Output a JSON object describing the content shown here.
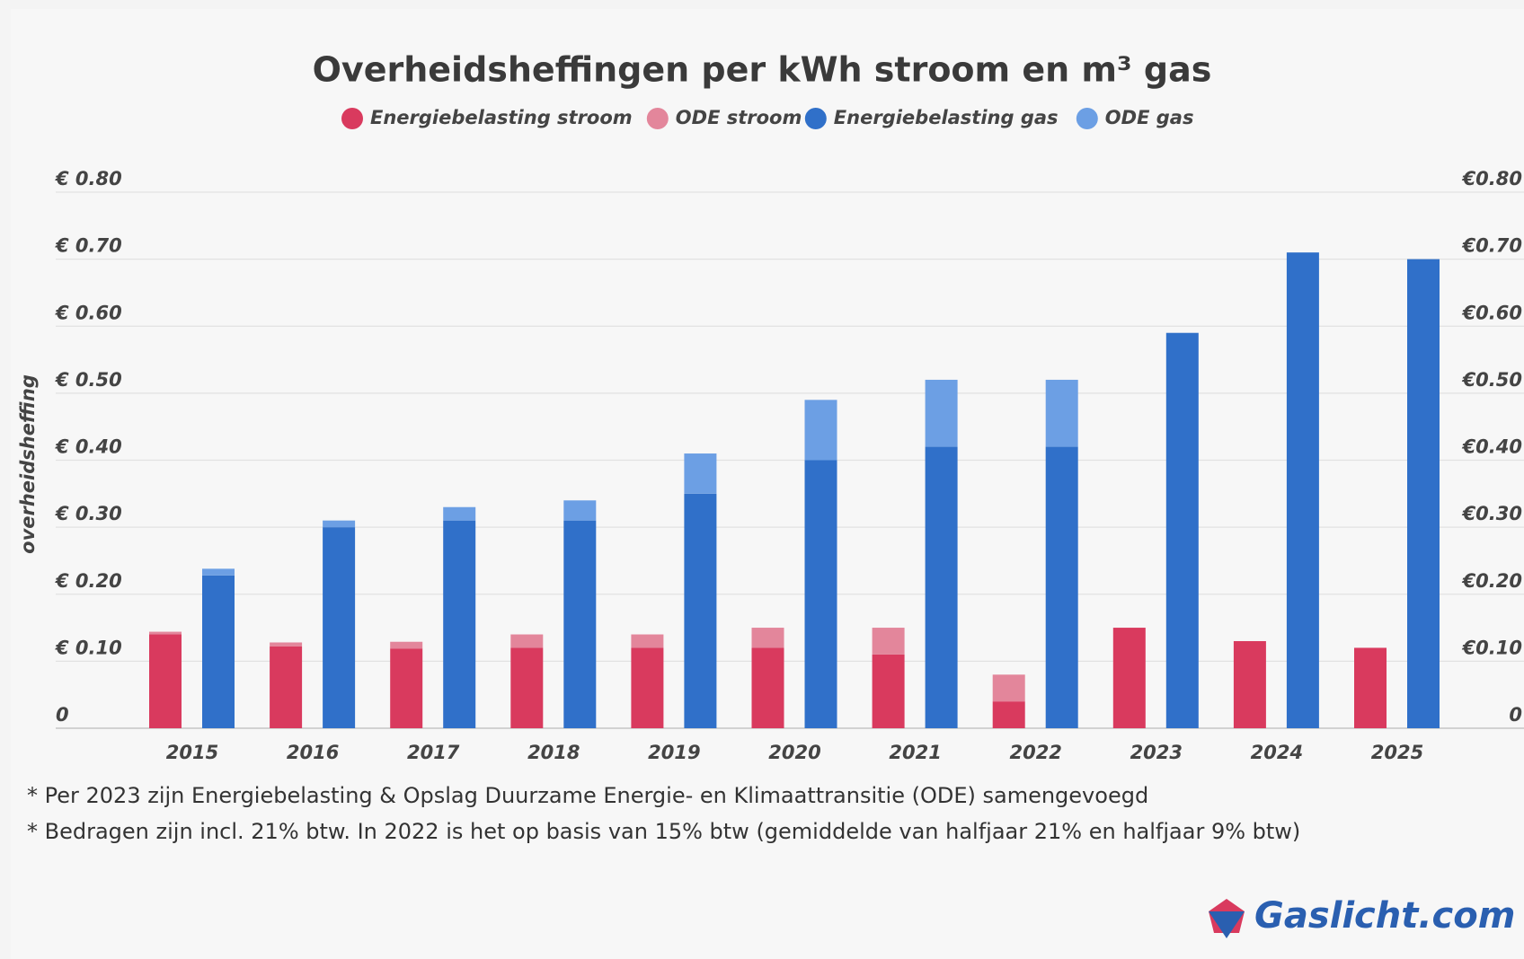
{
  "chart_data": {
    "type": "bar",
    "title": "Overheidsheffingen per kWh stroom en m³ gas",
    "y_label": "overheidsheffing",
    "categories": [
      "2015",
      "2016",
      "2017",
      "2018",
      "2019",
      "2020",
      "2021",
      "2022",
      "2023",
      "2024",
      "2025"
    ],
    "series": [
      {
        "name": "Energiebelasting stroom",
        "color": "#d93a5e",
        "values": [
          0.14,
          0.122,
          0.119,
          0.12,
          0.12,
          0.12,
          0.11,
          0.04,
          0.15,
          0.13,
          0.12
        ]
      },
      {
        "name": "ODE stroom",
        "color": "#e3869b",
        "values": [
          0.004,
          0.006,
          0.01,
          0.02,
          0.02,
          0.03,
          0.04,
          0.04,
          null,
          null,
          null
        ]
      },
      {
        "name": "Energiebelasting gas",
        "color": "#3070c9",
        "values": [
          0.228,
          0.3,
          0.31,
          0.31,
          0.35,
          0.4,
          0.42,
          0.42,
          0.59,
          0.71,
          0.7
        ]
      },
      {
        "name": "ODE gas",
        "color": "#6c9fe4",
        "values": [
          0.01,
          0.01,
          0.02,
          0.03,
          0.06,
          0.09,
          0.1,
          0.1,
          null,
          null,
          null
        ]
      }
    ],
    "stacked": true,
    "ylim": [
      0,
      0.8
    ],
    "yticks": [
      0,
      {
        "value": 0.1,
        "label": "€ 0.10"
      },
      {
        "value": 0.2,
        "label": "€ 0.20"
      },
      {
        "value": 0.3,
        "label": "€ 0.30"
      },
      {
        "value": 0.4,
        "label": "€ 0.40"
      },
      {
        "value": 0.5,
        "label": "€ 0.50"
      },
      {
        "value": 0.6,
        "label": "€ 0.60"
      },
      {
        "value": 0.7,
        "label": "€ 0.70"
      },
      {
        "value": 0.8,
        "label": "€ 0.80"
      }
    ],
    "y2lim": [
      0,
      0.8
    ],
    "y2ticks": [
      0,
      {
        "value": 0.1,
        "label": "€0.10"
      },
      {
        "value": 0.2,
        "label": "€0.20"
      },
      {
        "value": 0.3,
        "label": "€0.30"
      },
      {
        "value": 0.4,
        "label": "€0.40"
      },
      {
        "value": 0.5,
        "label": "€0.50"
      },
      {
        "value": 0.6,
        "label": "€0.60"
      },
      {
        "value": 0.7,
        "label": "€0.70"
      },
      {
        "value": 0.8,
        "label": "€0.80"
      }
    ],
    "grid": true,
    "legend": "top",
    "annotations": [
      "* Per 2023 zijn Energiebelasting & Opslag Duurzame Energie- en Klimaattransitie (ODE) samengevoegd",
      "* Bedragen zijn incl. 21% btw. In 2022 is het op basis van 15% btw (gemiddelde van halfjaar 21% en halfjaar 9% btw)"
    ],
    "source": "Gaslicht.com"
  }
}
